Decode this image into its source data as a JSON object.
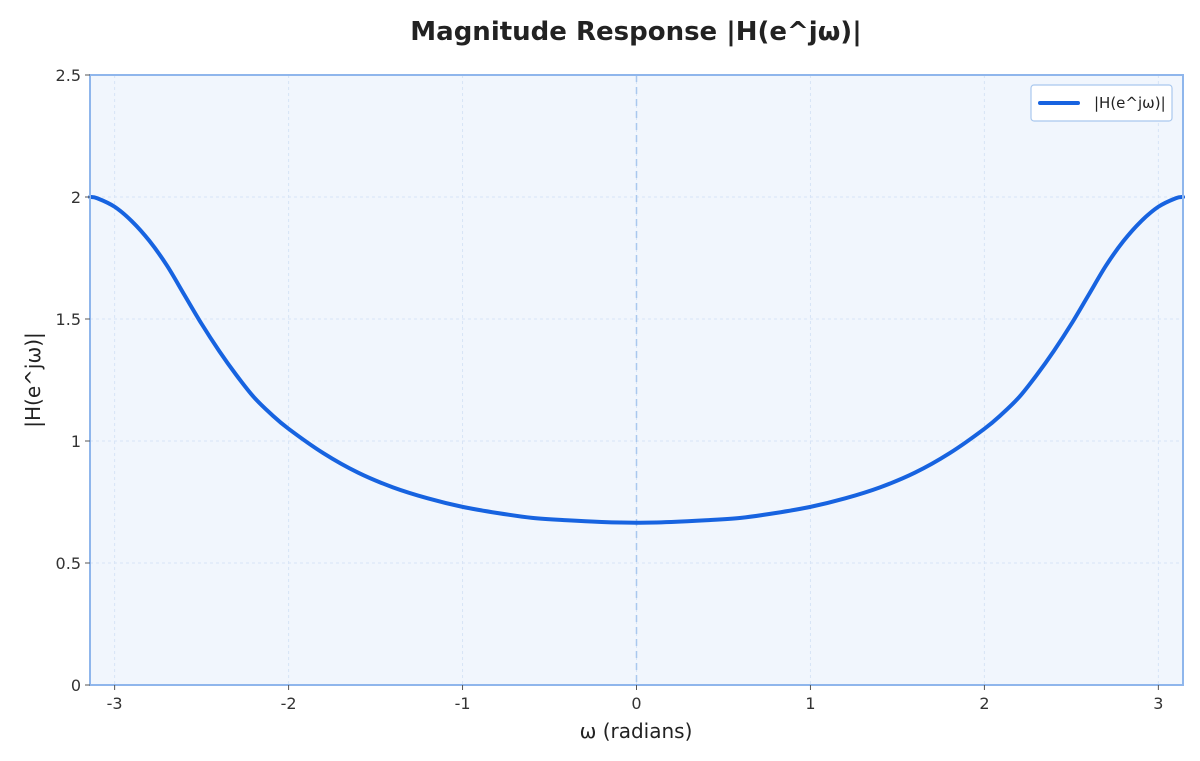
{
  "chart_data": {
    "type": "line",
    "title": "Magnitude Response |H(e^jω)|",
    "xlabel": "ω (radians)",
    "ylabel": "|H(e^jω)|",
    "xlim": [
      -3.14159,
      3.14159
    ],
    "ylim": [
      0,
      2.5
    ],
    "xticks": [
      -3,
      -2,
      -1,
      0,
      1,
      2,
      3
    ],
    "xtick_labels": [
      "-3",
      "-2",
      "-1",
      "0",
      "1",
      "2",
      "3"
    ],
    "yticks": [
      0,
      0.5,
      1,
      1.5,
      2,
      2.5
    ],
    "ytick_labels": [
      "0",
      "0.5",
      "1",
      "1.5",
      "2",
      "2.5"
    ],
    "grid": true,
    "legend_position": "top-right",
    "vline_x": 0,
    "series": [
      {
        "name": "|H(e^jω)|",
        "color": "#1763e0",
        "x": [
          -3.1416,
          -3.1,
          -3.0,
          -2.9,
          -2.8,
          -2.7,
          -2.6,
          -2.5,
          -2.4,
          -2.3,
          -2.2,
          -2.1,
          -2.0,
          -1.8,
          -1.6,
          -1.4,
          -1.2,
          -1.0,
          -0.8,
          -0.6,
          -0.4,
          -0.2,
          0.0,
          0.2,
          0.4,
          0.6,
          0.8,
          1.0,
          1.2,
          1.4,
          1.6,
          1.8,
          2.0,
          2.1,
          2.2,
          2.3,
          2.4,
          2.5,
          2.6,
          2.7,
          2.8,
          2.9,
          3.0,
          3.1,
          3.1416
        ],
        "y": [
          2.0,
          1.995,
          1.96,
          1.9,
          1.82,
          1.72,
          1.6,
          1.48,
          1.37,
          1.27,
          1.18,
          1.11,
          1.05,
          0.95,
          0.87,
          0.81,
          0.765,
          0.73,
          0.705,
          0.685,
          0.675,
          0.668,
          0.665,
          0.668,
          0.675,
          0.685,
          0.705,
          0.73,
          0.765,
          0.81,
          0.87,
          0.95,
          1.05,
          1.11,
          1.18,
          1.27,
          1.37,
          1.48,
          1.6,
          1.72,
          1.82,
          1.9,
          1.96,
          1.995,
          2.0
        ]
      }
    ]
  },
  "colors": {
    "plot_background": "#f1f6fd",
    "frame": "#8fb6ec",
    "grid": "#d7e4f6",
    "vline": "#a9c8ee",
    "line": "#1763e0"
  }
}
